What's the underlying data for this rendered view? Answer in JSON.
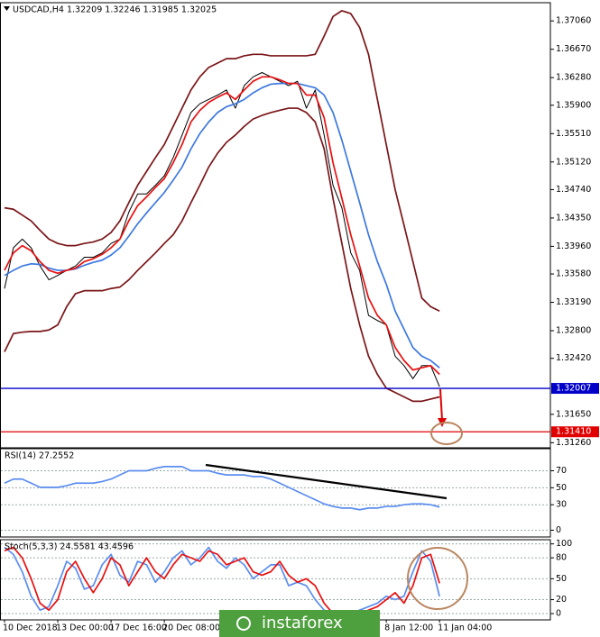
{
  "chart_data": [
    {
      "type": "line",
      "title": "USDCAD,H4  1.32209 1.32246 1.31985 1.32025",
      "ylim": [
        1.3119,
        1.3731
      ],
      "yticks": [
        {
          "value": 1.3706,
          "label": "1.37060"
        },
        {
          "value": 1.3667,
          "label": "1.36670"
        },
        {
          "value": 1.3628,
          "label": "1.36280"
        },
        {
          "value": 1.359,
          "label": "1.35900"
        },
        {
          "value": 1.3551,
          "label": "1.35510"
        },
        {
          "value": 1.3512,
          "label": "1.35120"
        },
        {
          "value": 1.3474,
          "label": "1.34740"
        },
        {
          "value": 1.3435,
          "label": "1.34350"
        },
        {
          "value": 1.3396,
          "label": "1.33960"
        },
        {
          "value": 1.3358,
          "label": "1.33580"
        },
        {
          "value": 1.3319,
          "label": "1.33190"
        },
        {
          "value": 1.328,
          "label": "1.32800"
        },
        {
          "value": 1.3242,
          "label": "1.32420"
        },
        {
          "value": 1.3165,
          "label": "1.31650"
        },
        {
          "value": 1.3126,
          "label": "1.31260"
        }
      ],
      "grid": false,
      "series": [
        {
          "color": "#7a1518",
          "values": [
            1.3449,
            1.3447,
            1.3439,
            1.3431,
            1.3418,
            1.3406,
            1.34,
            1.3397,
            1.3397,
            1.34,
            1.3402,
            1.3406,
            1.3415,
            1.3431,
            1.3456,
            1.348,
            1.3499,
            1.3518,
            1.3536,
            1.3561,
            1.3586,
            1.3611,
            1.3629,
            1.3642,
            1.3648,
            1.3654,
            1.3654,
            1.3658,
            1.366,
            1.366,
            1.3658,
            1.3658,
            1.3658,
            1.3658,
            1.3658,
            1.366,
            1.3685,
            1.3712,
            1.372,
            1.3716,
            1.3697,
            1.366,
            1.3598,
            1.3536,
            1.3474,
            1.3425,
            1.3375,
            1.3325,
            1.3313,
            1.3307
          ]
        },
        {
          "color": "#7a1518",
          "values": [
            1.3251,
            1.3276,
            1.3278,
            1.3279,
            1.3279,
            1.3281,
            1.3288,
            1.3313,
            1.3331,
            1.3335,
            1.3335,
            1.3335,
            1.3338,
            1.334,
            1.335,
            1.3363,
            1.3375,
            1.3387,
            1.34,
            1.3412,
            1.3431,
            1.3456,
            1.348,
            1.3505,
            1.3524,
            1.3539,
            1.3549,
            1.3561,
            1.3571,
            1.3576,
            1.358,
            1.3583,
            1.3586,
            1.3586,
            1.358,
            1.3567,
            1.353,
            1.3462,
            1.34,
            1.3338,
            1.3288,
            1.3245,
            1.322,
            1.3201,
            1.3195,
            1.3189,
            1.3183,
            1.3183,
            1.3186,
            1.3189
          ]
        },
        {
          "color": "#000000",
          "values": [
            1.3338,
            1.3394,
            1.3406,
            1.3394,
            1.3369,
            1.335,
            1.3356,
            1.3363,
            1.3369,
            1.3381,
            1.3381,
            1.3387,
            1.34,
            1.3406,
            1.3443,
            1.3468,
            1.3468,
            1.348,
            1.3493,
            1.3518,
            1.3549,
            1.358,
            1.3592,
            1.3598,
            1.3604,
            1.3611,
            1.3586,
            1.3617,
            1.3629,
            1.3635,
            1.3629,
            1.3623,
            1.3617,
            1.3623,
            1.3586,
            1.3611,
            1.3549,
            1.348,
            1.3449,
            1.3387,
            1.3363,
            1.3301,
            1.3294,
            1.3288,
            1.3245,
            1.3232,
            1.3214,
            1.3232,
            1.3232,
            1.3203
          ]
        },
        {
          "color": "#3c78e0",
          "values": [
            1.3356,
            1.3363,
            1.3369,
            1.3372,
            1.3371,
            1.3366,
            1.3363,
            1.3363,
            1.3365,
            1.337,
            1.3374,
            1.3377,
            1.3384,
            1.3394,
            1.341,
            1.3427,
            1.3442,
            1.3456,
            1.347,
            1.3487,
            1.3505,
            1.353,
            1.3551,
            1.3567,
            1.358,
            1.3588,
            1.3592,
            1.3598,
            1.3607,
            1.3614,
            1.3619,
            1.362,
            1.362,
            1.362,
            1.3617,
            1.3614,
            1.3604,
            1.358,
            1.3542,
            1.3499,
            1.3456,
            1.3412,
            1.3375,
            1.3344,
            1.3307,
            1.3282,
            1.3257,
            1.3245,
            1.3239,
            1.3229
          ]
        },
        {
          "color": "#e81010",
          "values": [
            1.3363,
            1.3387,
            1.3397,
            1.339,
            1.3375,
            1.3363,
            1.3359,
            1.3363,
            1.3366,
            1.3375,
            1.3379,
            1.3385,
            1.3394,
            1.3406,
            1.3431,
            1.3452,
            1.3464,
            1.3477,
            1.3489,
            1.3511,
            1.3536,
            1.3567,
            1.3583,
            1.3594,
            1.3601,
            1.3607,
            1.3598,
            1.3611,
            1.3623,
            1.3629,
            1.3629,
            1.3625,
            1.362,
            1.362,
            1.3604,
            1.3604,
            1.3573,
            1.3511,
            1.3462,
            1.3412,
            1.3369,
            1.3325,
            1.3301,
            1.3288,
            1.3257,
            1.3239,
            1.3226,
            1.3229,
            1.3232,
            1.322
          ]
        }
      ],
      "lines": [
        {
          "value": 1.32007,
          "color": "#0000c8"
        },
        {
          "value": 1.3141,
          "label": "1.31410",
          "color": "#e00000"
        }
      ]
    },
    {
      "type": "line",
      "title": "RSI(14) 27.2552",
      "ylim": [
        -8,
        96
      ],
      "yticks": [
        70,
        50,
        30,
        0
      ],
      "grid": true,
      "series": [
        {
          "color": "#5b8def",
          "values": [
            55.4,
            60.2,
            60.2,
            55.4,
            50.5,
            50.5,
            50.5,
            52.4,
            55.4,
            55.4,
            55.4,
            57.3,
            60.2,
            65.1,
            70,
            70,
            70,
            72.9,
            74.9,
            74.9,
            74.9,
            70,
            70,
            70,
            67.1,
            65.1,
            65.1,
            65.1,
            63.2,
            63.2,
            60.2,
            55.4,
            50.5,
            45.6,
            40.7,
            35.9,
            31,
            28,
            26.1,
            26.1,
            24.1,
            26.1,
            26.1,
            28,
            28,
            30,
            31,
            31,
            30,
            27.3
          ]
        }
      ]
    },
    {
      "type": "line",
      "title": "Stoch(5,3,3) 24.5581 43.4596",
      "ylim": [
        -9,
        106
      ],
      "yticks": [
        100,
        80,
        50,
        20,
        0
      ],
      "grid": true,
      "categories": [
        "10 Dec 2018",
        null,
        null,
        null,
        null,
        null,
        "13 Dec 00:00",
        null,
        null,
        null,
        null,
        null,
        "17 Dec 16:00",
        null,
        null,
        null,
        null,
        null,
        "20 Dec 08:00",
        null,
        null,
        null,
        null,
        null,
        null,
        null,
        null,
        null,
        null,
        null,
        null,
        null,
        null,
        null,
        null,
        null,
        null,
        null,
        null,
        null,
        null,
        null,
        null,
        "8 Jan 12:00",
        null,
        null,
        null,
        null,
        null,
        "11 Jan 04:00"
      ],
      "series": [
        {
          "color": "#5b8def",
          "values": [
            95,
            85,
            60,
            25,
            5,
            10,
            40,
            75,
            65,
            35,
            40,
            70,
            85,
            55,
            45,
            75,
            70,
            45,
            60,
            80,
            90,
            70,
            80,
            95,
            75,
            65,
            80,
            70,
            50,
            60,
            70,
            70,
            40,
            45,
            40,
            20,
            5,
            0,
            0,
            0,
            5,
            10,
            15,
            25,
            20,
            25,
            60,
            90,
            75,
            24.6
          ]
        },
        {
          "color": "#e81010",
          "values": [
            90,
            95,
            80,
            50,
            15,
            5,
            20,
            60,
            75,
            50,
            30,
            50,
            80,
            70,
            40,
            60,
            80,
            60,
            50,
            70,
            85,
            80,
            75,
            90,
            85,
            70,
            75,
            80,
            60,
            55,
            60,
            75,
            55,
            45,
            50,
            40,
            15,
            0,
            0,
            0,
            0,
            5,
            10,
            20,
            30,
            15,
            40,
            80,
            85,
            43.5
          ]
        }
      ]
    }
  ],
  "watermark": "instaforex"
}
